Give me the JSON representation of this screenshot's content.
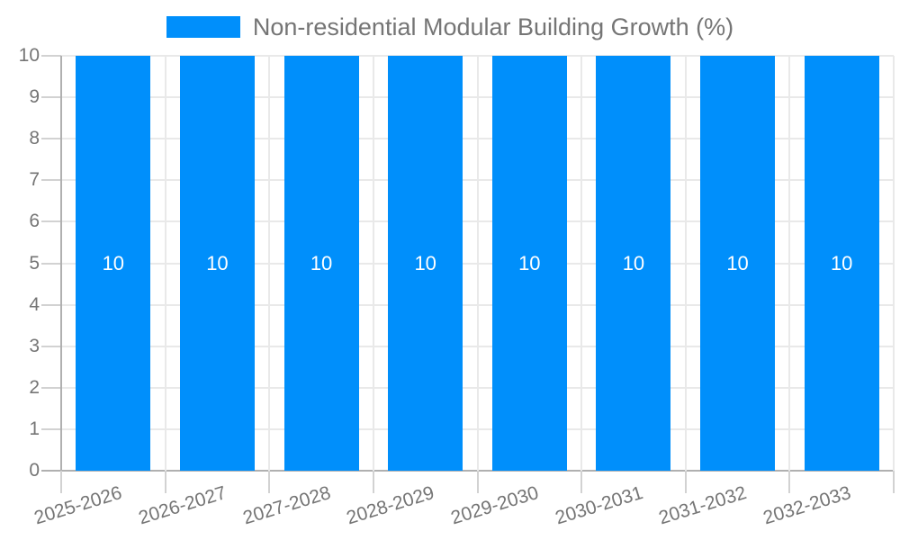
{
  "chart_data": {
    "type": "bar",
    "title": "Non-residential Modular Building Growth (%)",
    "legend": {
      "position": "top-center",
      "label": "Non-residential Modular Building Growth (%)"
    },
    "categories": [
      "2025-2026",
      "2026-2027",
      "2027-2028",
      "2028-2029",
      "2029-2030",
      "2030-2031",
      "2031-2032",
      "2032-2033"
    ],
    "values": [
      10,
      10,
      10,
      10,
      10,
      10,
      10,
      10
    ],
    "bar_value_labels": [
      "10",
      "10",
      "10",
      "10",
      "10",
      "10",
      "10",
      "10"
    ],
    "xlabel": "",
    "ylabel": "",
    "ylim": [
      0,
      10
    ],
    "y_ticks": [
      "0",
      "1",
      "2",
      "3",
      "4",
      "5",
      "6",
      "7",
      "8",
      "9",
      "10"
    ],
    "grid": true,
    "colors": {
      "bar": "#008FFB",
      "bar_label_text": "#ffffff",
      "axis_text": "#757575",
      "legend_text": "#757575",
      "gridline": "#e9e9e9",
      "axis_line": "#b0b0b0",
      "tick_line": "#d2d2d2",
      "background": "#ffffff"
    }
  }
}
